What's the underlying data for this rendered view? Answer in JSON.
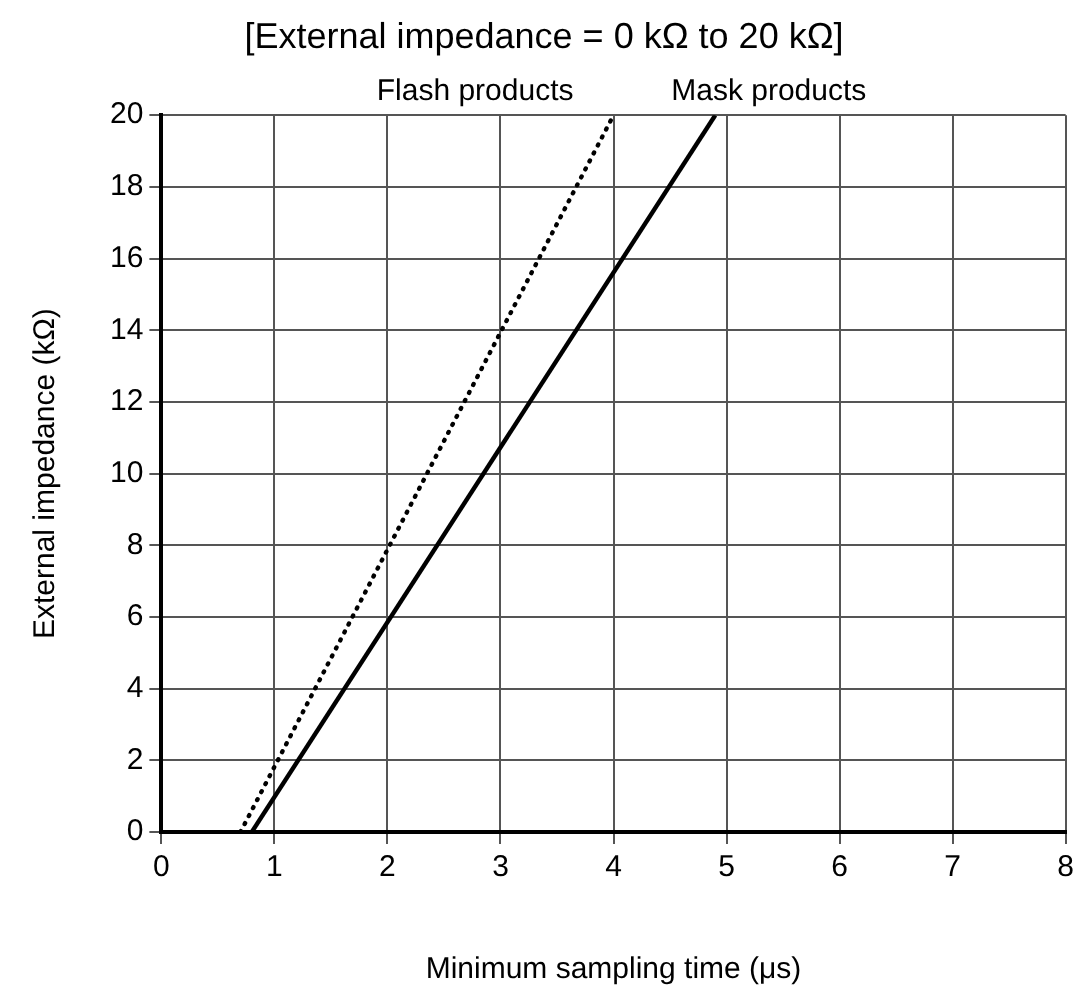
{
  "chart_data": {
    "type": "line",
    "title": "[External impedance = 0 kΩ to 20 kΩ]",
    "xlabel": "Minimum sampling time (μs)",
    "ylabel": "External impedance (kΩ)",
    "series": [
      {
        "name": "Flash products",
        "color": "#000000",
        "line_style": "dotted",
        "x": [
          0.7,
          4.0
        ],
        "values": [
          0,
          20
        ]
      },
      {
        "name": "Mask products",
        "color": "#000000",
        "line_style": "solid",
        "x": [
          0.8,
          4.9
        ],
        "values": [
          0,
          20
        ]
      }
    ],
    "xlim": [
      0,
      8
    ],
    "xticks": [
      0,
      1,
      2,
      3,
      4,
      5,
      6,
      7,
      8
    ],
    "ylim": [
      0,
      20
    ],
    "yticks": [
      0,
      2,
      4,
      6,
      8,
      10,
      12,
      14,
      16,
      18,
      20
    ],
    "grid": true,
    "legend": false,
    "marker": "none"
  }
}
